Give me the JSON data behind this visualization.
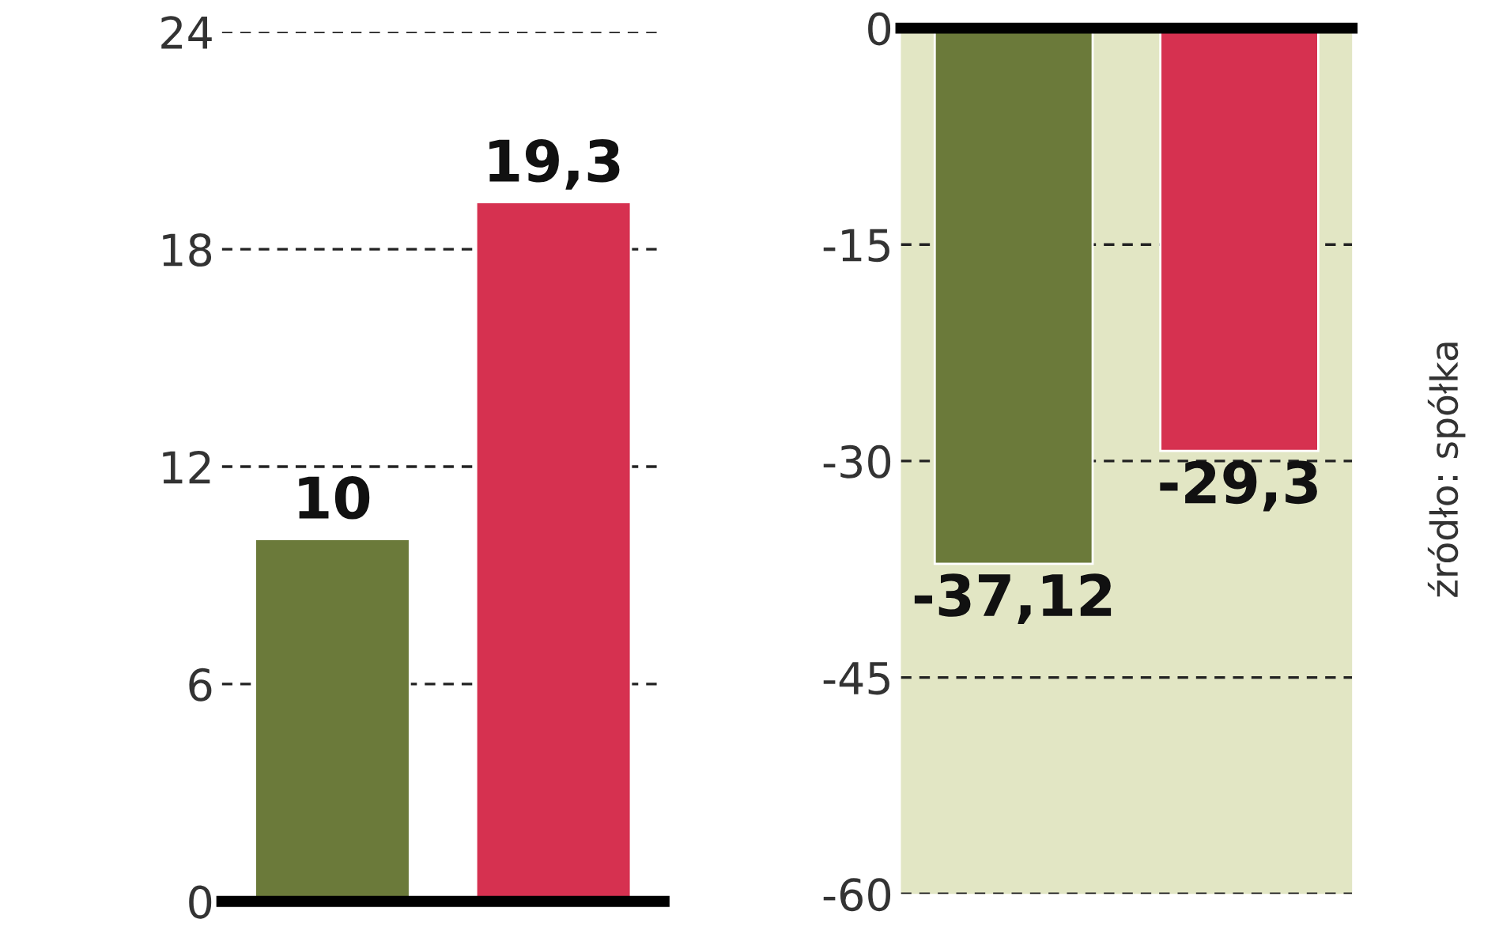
{
  "chart_data": [
    {
      "type": "bar",
      "categories": [
        null,
        null
      ],
      "values": [
        10,
        19.3
      ],
      "colors": [
        "#6b7a3a",
        "#d63150"
      ],
      "value_labels": [
        "10",
        "19,3"
      ],
      "ylim": [
        0,
        24
      ],
      "yticks": [
        0,
        6,
        12,
        18,
        24
      ],
      "grid": "y"
    },
    {
      "type": "bar",
      "categories": [
        null,
        null
      ],
      "values": [
        -37.12,
        -29.3
      ],
      "colors": [
        "#6b7a3a",
        "#d63150"
      ],
      "value_labels": [
        "-37,12",
        "-29,3"
      ],
      "ylim": [
        -60,
        0
      ],
      "yticks": [
        -60,
        -45,
        -30,
        -15,
        0
      ],
      "grid": "y",
      "annotations": [
        "źródło: spółka"
      ]
    }
  ]
}
